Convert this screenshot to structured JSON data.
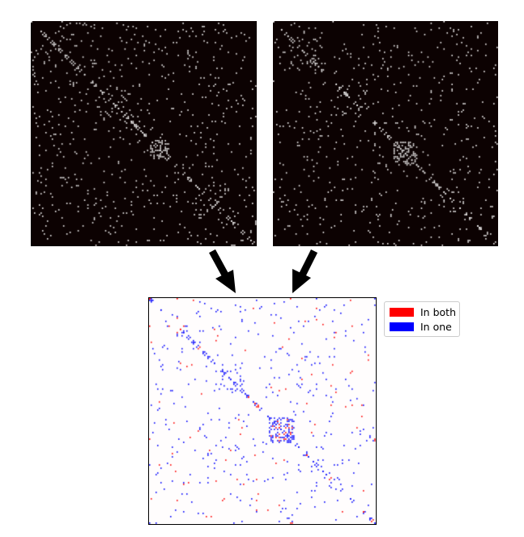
{
  "colors": {
    "background_dark": "#0c0202",
    "dot_light": "#ffffff",
    "diff_background": "#fffdfd",
    "in_both": "#ff0000",
    "in_one": "#0000ff",
    "arrow": "#000000"
  },
  "legend": {
    "items": [
      {
        "label": "In both",
        "color": "#ff0000"
      },
      {
        "label": "In one",
        "color": "#0000ff"
      }
    ]
  }
}
